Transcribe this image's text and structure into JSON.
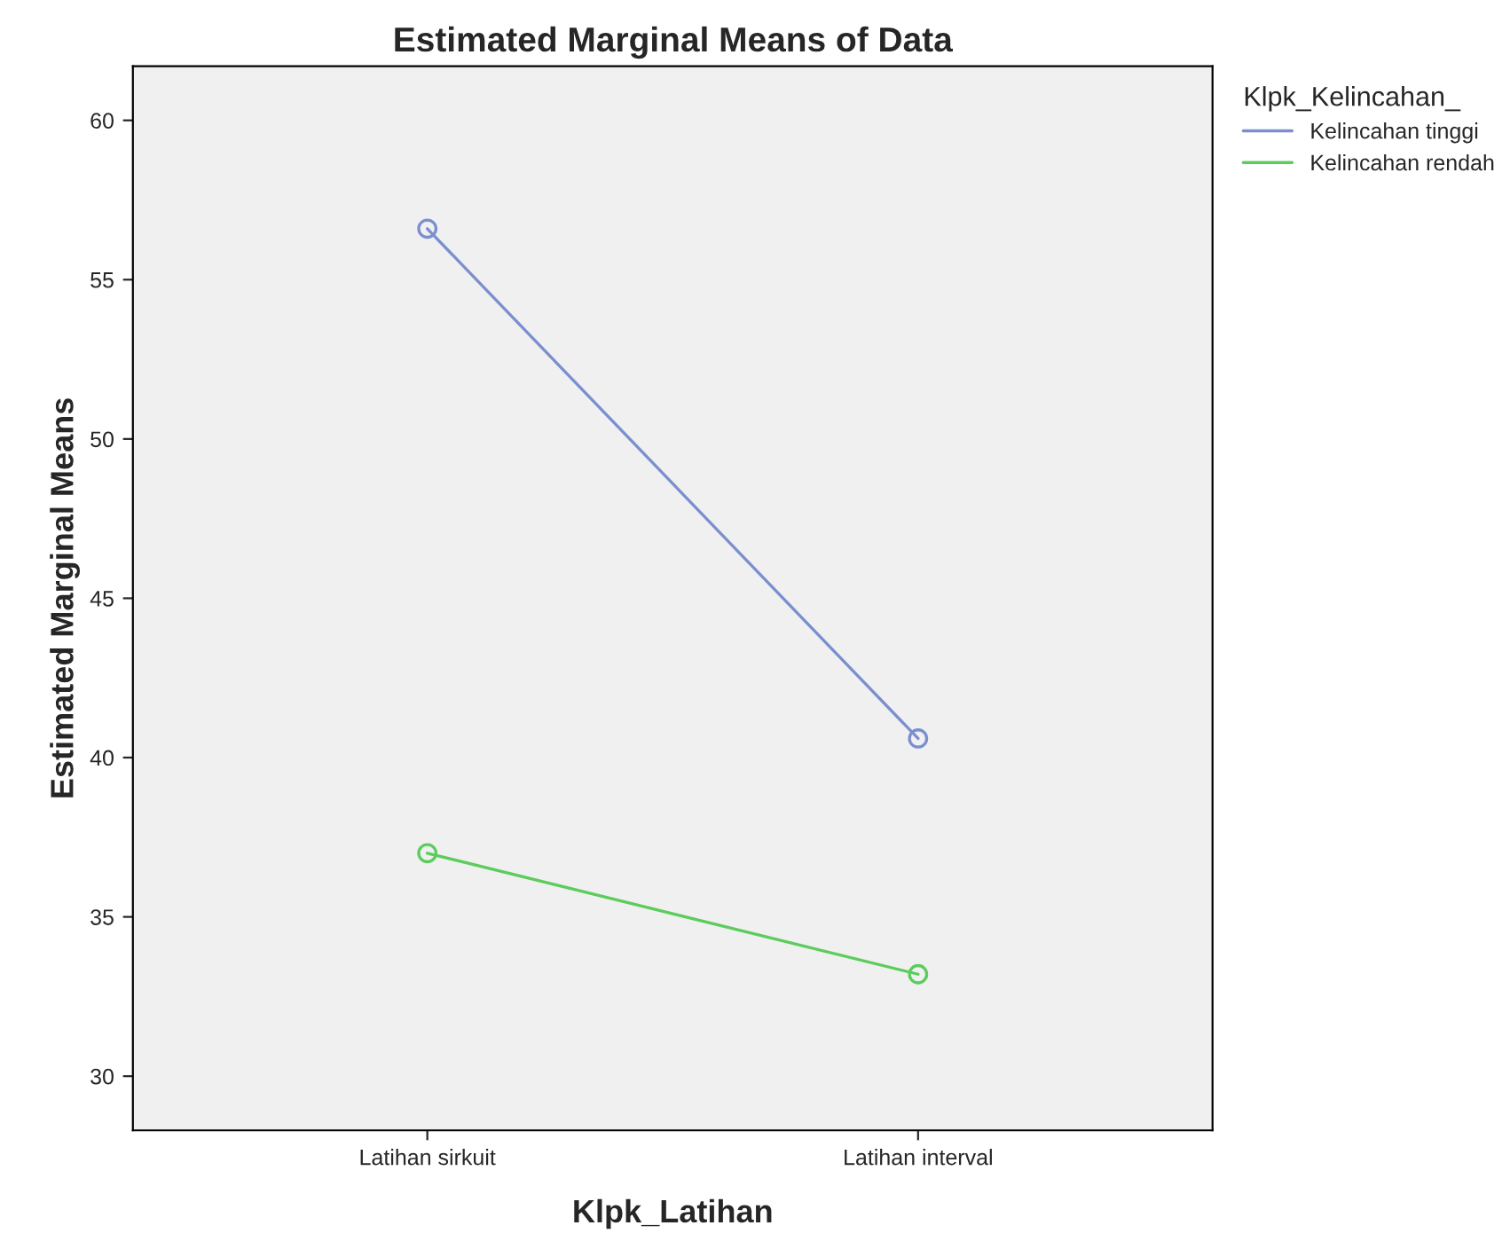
{
  "chart_data": {
    "type": "line",
    "title": "Estimated Marginal Means of Data",
    "xlabel": "Klpk_Latihan",
    "ylabel": "Estimated Marginal Means",
    "legend_title": "Klpk_Kelincahan_",
    "categories": [
      "Latihan sirkuit",
      "Latihan interval"
    ],
    "series": [
      {
        "name": "Kelincahan tinggi",
        "color": "#7b8fd0",
        "values": [
          56.6,
          40.6
        ]
      },
      {
        "name": "Kelincahan rendah",
        "color": "#5ccc5c",
        "values": [
          37.0,
          33.2
        ]
      }
    ],
    "ylim": [
      28.3,
      61.7
    ],
    "yticks": [
      30,
      35,
      40,
      45,
      50,
      55,
      60
    ],
    "marker": "circle",
    "line_style": "solid",
    "grid": false,
    "legend": "right"
  }
}
